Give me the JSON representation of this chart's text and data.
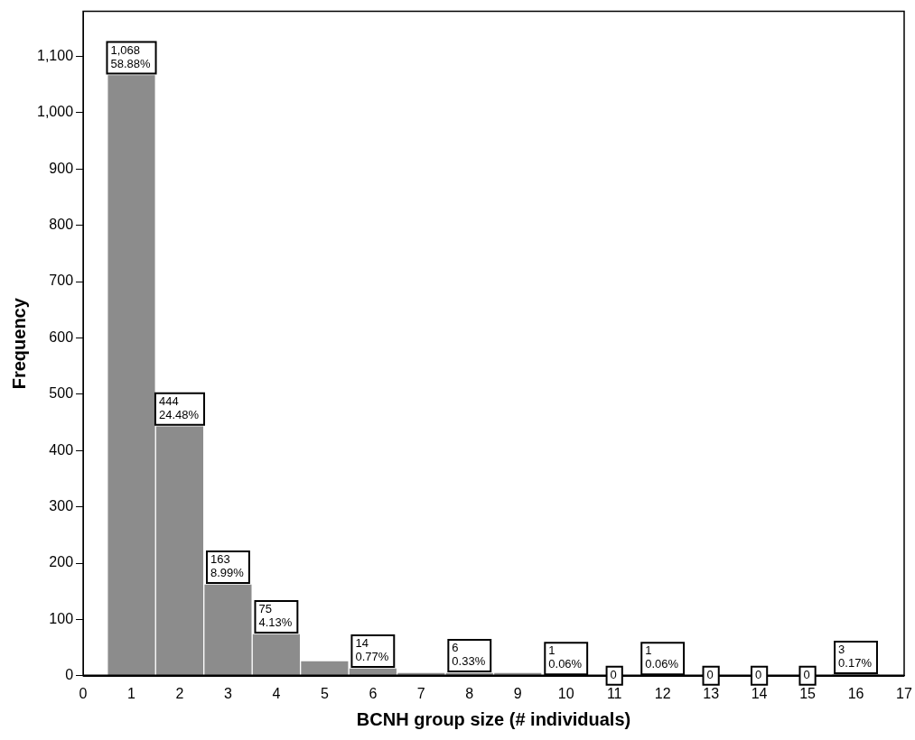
{
  "chart_data": {
    "type": "histogram",
    "xlabel": "BCNH group size (# individuals)",
    "ylabel": "Frequency",
    "bins": [
      0.5,
      1.5,
      2.5,
      3.5,
      4.5,
      5.5,
      6.5,
      7.5,
      8.5,
      9.5,
      10.5,
      11.5,
      12.5,
      13.5,
      14.5,
      15.5,
      16.5
    ],
    "values": [
      1068,
      444,
      163,
      75,
      27,
      14,
      6,
      6,
      6,
      1,
      0,
      1,
      0,
      0,
      0,
      3
    ],
    "value_labels": [
      "1,068\n58.88%",
      "444\n24.48%",
      "163\n8.99%",
      "75\n4.13%",
      null,
      "14\n0.77%",
      null,
      "6\n0.33%",
      null,
      "1\n0.06%",
      "0",
      "1\n0.06%",
      "0",
      "0",
      "0",
      "3\n0.17%"
    ],
    "color": "#8c8c8c",
    "xlim": [
      0,
      17
    ],
    "xticks": [
      0,
      1,
      2,
      3,
      4,
      5,
      6,
      7,
      8,
      9,
      10,
      11,
      12,
      13,
      14,
      15,
      16,
      17
    ],
    "ylim": [
      0,
      1180
    ],
    "yticks": [
      0,
      100,
      200,
      300,
      400,
      500,
      600,
      700,
      800,
      900,
      {
        "value": 1000,
        "label": "1,000"
      },
      {
        "value": 1100,
        "label": "1,100"
      }
    ],
    "grid": false,
    "legend": false
  }
}
